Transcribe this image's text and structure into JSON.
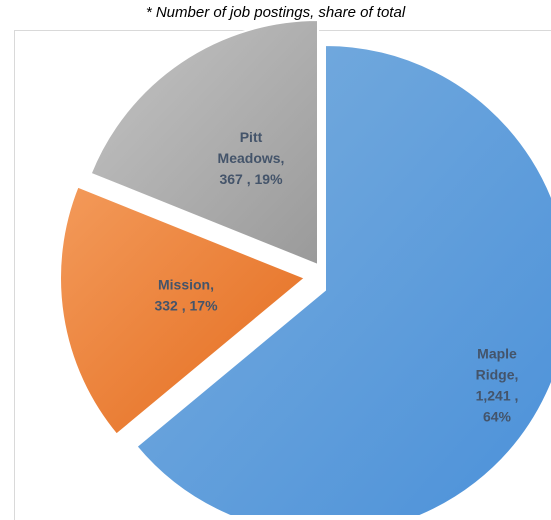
{
  "chart_data": {
    "type": "pie",
    "subtitle": "* Number of job postings, share of total",
    "slices": [
      {
        "name": "Maple Ridge",
        "value": 1241,
        "percent": 64,
        "label_lines": [
          "Maple",
          "Ridge,",
          "1,241 ,",
          "64%"
        ],
        "color": "#5b9bd5"
      },
      {
        "name": "Mission",
        "value": 332,
        "percent": 17,
        "label_lines": [
          "Mission,",
          "332 , 17%"
        ],
        "color": "#ed7d31"
      },
      {
        "name": "Pitt Meadows",
        "value": 367,
        "percent": 19,
        "label_lines": [
          "Pitt",
          "Meadows,",
          "367 , 19%"
        ],
        "color": "#a5a5a5"
      }
    ]
  }
}
